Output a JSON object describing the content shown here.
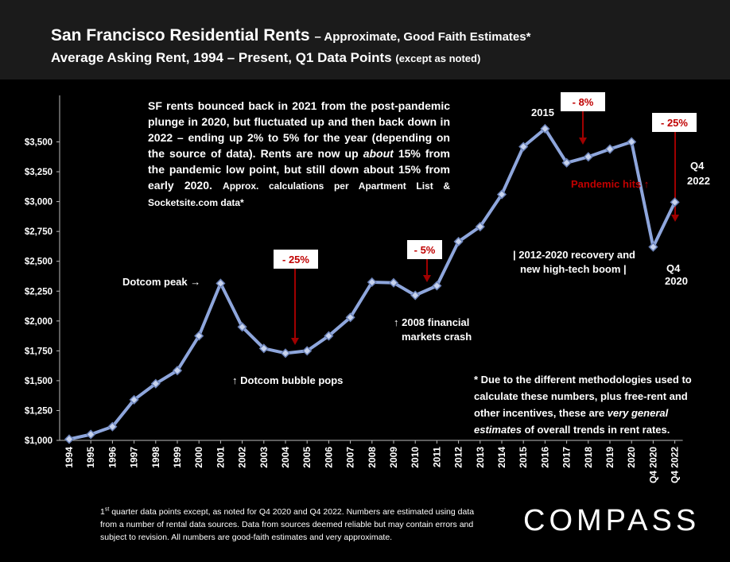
{
  "header": {
    "title_main": "San Francisco Residential Rents",
    "title_sub": "– Approximate, Good Faith Estimates*",
    "subtitle_main": "Average Asking Rent, 1994 – Present, Q1 Data Points",
    "subtitle_sub": "(except as noted)"
  },
  "intro_note": {
    "text_1": "SF rents bounced back in 2021 from the post-pandemic plunge in 2020, but fluctuated up and then back down in 2022 – ending up 2% to 5% for the year (depending on the source of data). Rents are now up ",
    "emph": "about",
    "text_2": " 15% from the pandemic low point, but still down about 15% from early 2020. ",
    "small": "Approx. calculations per Apartment List & Socketsite.com data*"
  },
  "method_note": {
    "text_1": "* Due to the different methodologies used to calculate these numbers, plus free-rent and other incentives, these are ",
    "emph": "very general estimates",
    "text_2": " of overall trends in rent rates."
  },
  "footnote": {
    "sup": "st",
    "text": "1 quarter data points except, as noted for Q4 2020 and Q4 2022. Numbers are estimated using data from a number of rental data sources. Data from sources deemed reliable but may contain errors and subject to revision. All numbers are good-faith estimates and very approximate."
  },
  "logo": "COMPASS",
  "colors": {
    "line": "#8ea6dc",
    "marker": "#c7d3ee",
    "drop_arrow": "#a00000",
    "drop_label": "#c00000",
    "background": "#000000"
  },
  "chart_data": {
    "type": "line",
    "categories": [
      "1994",
      "1995",
      "1996",
      "1997",
      "1998",
      "1999",
      "2000",
      "2001",
      "2002",
      "2003",
      "2004",
      "2005",
      "2006",
      "2007",
      "2008",
      "2009",
      "2010",
      "2011",
      "2012",
      "2013",
      "2014",
      "2015",
      "2016",
      "2017",
      "2018",
      "2019",
      "2020",
      "Q4 2020",
      "Q4 2022"
    ],
    "values": [
      1010,
      1050,
      1115,
      1340,
      1475,
      1585,
      1875,
      2315,
      1950,
      1770,
      1730,
      1750,
      1875,
      2030,
      2325,
      2320,
      2215,
      2295,
      2665,
      2790,
      3060,
      3460,
      3610,
      3325,
      3375,
      3440,
      3500,
      2620,
      2995
    ],
    "ylim": [
      1000,
      3750
    ],
    "yticks": [
      1000,
      1250,
      1500,
      1750,
      2000,
      2250,
      2500,
      2750,
      3000,
      3250,
      3500
    ],
    "ytick_labels": [
      "$1,000",
      "$1,250",
      "$1,500",
      "$1,750",
      "$2,000",
      "$2,250",
      "$2,500",
      "$2,750",
      "$3,000",
      "$3,250",
      "$3,500"
    ],
    "xlabel": "",
    "ylabel": "",
    "grid": false,
    "annotations": [
      {
        "text": "Dotcom peak →",
        "color": "#ffffff"
      },
      {
        "text": "↑ Dotcom bubble pops",
        "color": "#ffffff"
      },
      {
        "text": "↑ 2008 financial",
        "color": "#ffffff"
      },
      {
        "text": "markets crash",
        "color": "#ffffff"
      },
      {
        "text": "| 2012-2020 recovery and",
        "color": "#ffffff"
      },
      {
        "text": "new high-tech boom |",
        "color": "#ffffff"
      },
      {
        "text": "2015",
        "color": "#ffffff"
      },
      {
        "text": "Pandemic hits ↑",
        "color": "#c00000"
      },
      {
        "text": "Q4",
        "color": "#ffffff"
      },
      {
        "text": "2020",
        "color": "#ffffff"
      },
      {
        "text": "Q4",
        "color": "#ffffff"
      },
      {
        "text": "2022",
        "color": "#ffffff"
      }
    ],
    "drops": [
      {
        "label": "- 25%",
        "from": "2001",
        "to": "2004"
      },
      {
        "label": "- 5%",
        "from": "2008",
        "to": "2010"
      },
      {
        "label": "- 8%",
        "from": "2016",
        "to": "2017"
      },
      {
        "label": "- 25%",
        "from": "2020",
        "to": "Q4 2020"
      }
    ]
  }
}
